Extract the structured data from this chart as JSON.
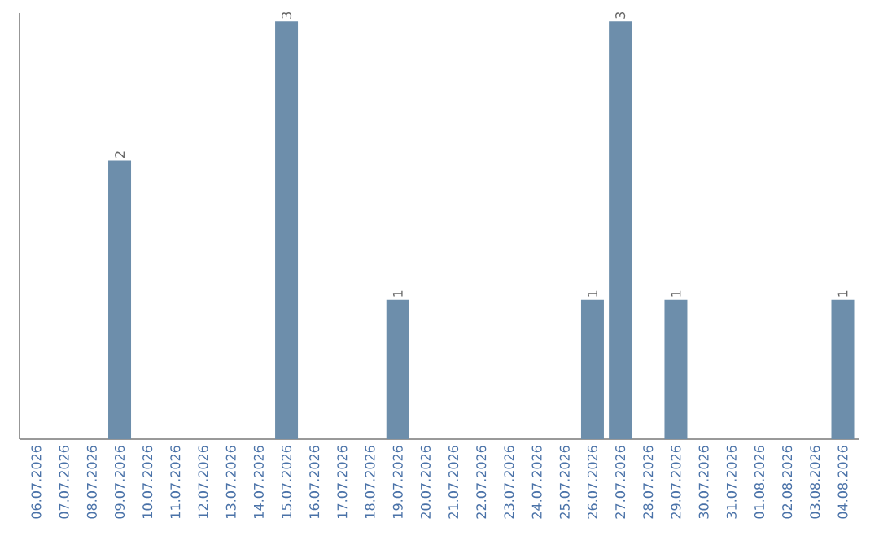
{
  "chart_data": {
    "type": "bar",
    "categories": [
      "06.07.2026",
      "07.07.2026",
      "08.07.2026",
      "09.07.2026",
      "10.07.2026",
      "11.07.2026",
      "12.07.2026",
      "13.07.2026",
      "14.07.2026",
      "15.07.2026",
      "16.07.2026",
      "17.07.2026",
      "18.07.2026",
      "19.07.2026",
      "20.07.2026",
      "21.07.2026",
      "22.07.2026",
      "23.07.2026",
      "24.07.2026",
      "25.07.2026",
      "26.07.2026",
      "27.07.2026",
      "28.07.2026",
      "29.07.2026",
      "30.07.2026",
      "31.07.2026",
      "01.08.2026",
      "02.08.2026",
      "03.08.2026",
      "04.08.2026"
    ],
    "values": [
      0,
      0,
      0,
      2,
      0,
      0,
      0,
      0,
      0,
      3,
      0,
      0,
      0,
      1,
      0,
      0,
      0,
      0,
      0,
      0,
      1,
      3,
      0,
      1,
      0,
      0,
      0,
      0,
      0,
      1
    ],
    "value_labels": [
      null,
      null,
      null,
      "2",
      null,
      null,
      null,
      null,
      null,
      "3",
      null,
      null,
      null,
      "1",
      null,
      null,
      null,
      null,
      null,
      null,
      "1",
      "3",
      null,
      "1",
      null,
      null,
      null,
      null,
      null,
      "1"
    ],
    "color": "#6d8eab",
    "tick_labels": "x"
  }
}
